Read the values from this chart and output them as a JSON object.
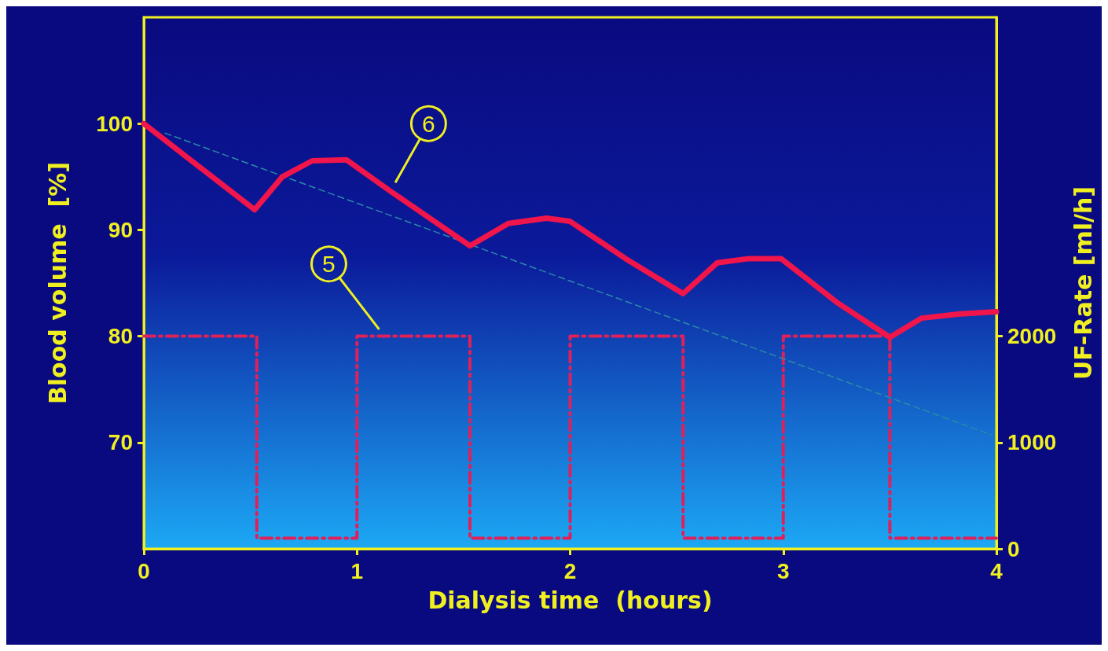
{
  "chart_data": {
    "type": "line",
    "xlabel": "Dialysis time  (hours)",
    "ylabel": "Blood volume  [%]",
    "y2label": "UF-Rate [ml/h]",
    "xlim": [
      0,
      4
    ],
    "xticks": [
      0,
      1,
      2,
      3,
      4
    ],
    "ylim": [
      60,
      110
    ],
    "yticks": [
      70,
      80,
      90,
      100
    ],
    "y2lim": [
      0,
      5000
    ],
    "y2ticks": [
      0,
      1000,
      2000
    ],
    "grid": false,
    "marker": "none",
    "series": [
      {
        "color": "#f0154a",
        "line_style": "solid",
        "x": [
          0,
          0.25,
          0.52,
          0.65,
          0.79,
          0.95,
          1.16,
          1.53,
          1.71,
          1.89,
          2.0,
          2.26,
          2.53,
          2.69,
          2.84,
          2.99,
          3.25,
          3.5,
          3.65,
          3.83,
          4.0
        ],
        "values": [
          100,
          96.1,
          91.9,
          95.0,
          96.5,
          96.6,
          93.6,
          88.5,
          90.6,
          91.1,
          90.8,
          87.3,
          84.0,
          86.9,
          87.3,
          87.3,
          83.2,
          79.9,
          81.7,
          82.1,
          82.3
        ]
      },
      {
        "type": "step",
        "axis": "y2",
        "color": "#e0205a",
        "line_style": "dashed",
        "x": [
          0,
          0.53,
          1.0,
          1.53,
          2.0,
          2.53,
          3.0,
          3.5,
          4.0
        ],
        "values": [
          2000,
          100,
          2000,
          100,
          2000,
          100,
          2000,
          100,
          100
        ]
      },
      {
        "color": "#2a8aa8",
        "line_style": "dashed",
        "x": [
          0.1,
          3.98
        ],
        "values": [
          99.1,
          70.7
        ]
      }
    ],
    "annotations": [
      "6",
      "5"
    ]
  }
}
